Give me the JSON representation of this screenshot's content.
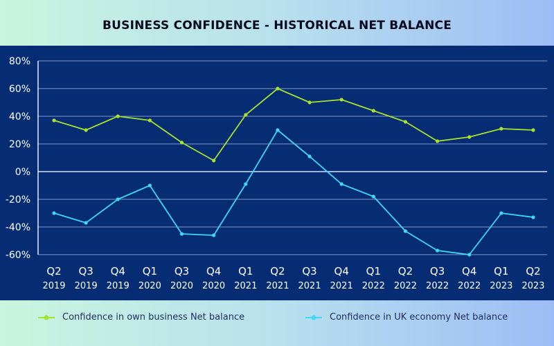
{
  "chart_data": {
    "type": "line",
    "title": "BUSINESS CONFIDENCE - HISTORICAL NET BALANCE",
    "categories": [
      [
        "Q2",
        "2019"
      ],
      [
        "Q3",
        "2019"
      ],
      [
        "Q4",
        "2019"
      ],
      [
        "Q1",
        "2020"
      ],
      [
        "Q3",
        "2020"
      ],
      [
        "Q4",
        "2020"
      ],
      [
        "Q1",
        "2021"
      ],
      [
        "Q2",
        "2021"
      ],
      [
        "Q3",
        "2021"
      ],
      [
        "Q4",
        "2021"
      ],
      [
        "Q1",
        "2022"
      ],
      [
        "Q2",
        "2022"
      ],
      [
        "Q3",
        "2022"
      ],
      [
        "Q4",
        "2022"
      ],
      [
        "Q1",
        "2023"
      ],
      [
        "Q2",
        "2023"
      ]
    ],
    "y_ticks": [
      "80%",
      "60%",
      "40%",
      "20%",
      "0%",
      "-20%",
      "-40%",
      "-60%"
    ],
    "ylim": [
      -60,
      80
    ],
    "y_unit": "%",
    "grid": true,
    "legend_position": "bottom",
    "series": [
      {
        "name": "Confidence in own business Net balance",
        "color": "#a6e22e",
        "values": [
          37,
          30,
          40,
          37,
          21,
          8,
          41,
          60,
          50,
          52,
          44,
          36,
          22,
          25,
          31,
          30
        ]
      },
      {
        "name": "Confidence in UK economy Net balance",
        "color": "#40d7f2",
        "values": [
          -30,
          -37,
          -20,
          -10,
          -45,
          -46,
          -9,
          30,
          11,
          -9,
          -18,
          -43,
          -57,
          -60,
          -30,
          -33
        ]
      }
    ],
    "colors": {
      "plot_background": "#062c73",
      "gridline": "#7f9ac8",
      "zero_line": "#d7e2f5",
      "tick_text": "#ffffff"
    }
  }
}
